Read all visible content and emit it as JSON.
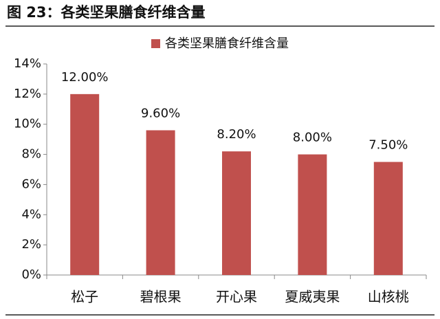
{
  "chart_data": {
    "type": "bar",
    "title": "图 23：各类坚果膳食纤维含量",
    "categories": [
      "松子",
      "碧根果",
      "开心果",
      "夏威夷果",
      "山核桃"
    ],
    "series": [
      {
        "name": "各类坚果膳食纤维含量",
        "color": "#c0504d",
        "values": [
          12,
          9.6,
          8.2,
          8,
          7.5
        ],
        "value_labels": [
          "12.00%",
          "9.60%",
          "8.20%",
          "8.00%",
          "7.50%"
        ]
      }
    ],
    "ylim": [
      0,
      14
    ],
    "yticks": [
      {
        "value": 0,
        "label": "0%"
      },
      {
        "value": 2,
        "label": "2%"
      },
      {
        "value": 4,
        "label": "4%"
      },
      {
        "value": 6,
        "label": "6%"
      },
      {
        "value": 8,
        "label": "8%"
      },
      {
        "value": 10,
        "label": "10%"
      },
      {
        "value": 12,
        "label": "12%"
      },
      {
        "value": 14,
        "label": "14%"
      }
    ],
    "grid": false,
    "legend": "top"
  }
}
